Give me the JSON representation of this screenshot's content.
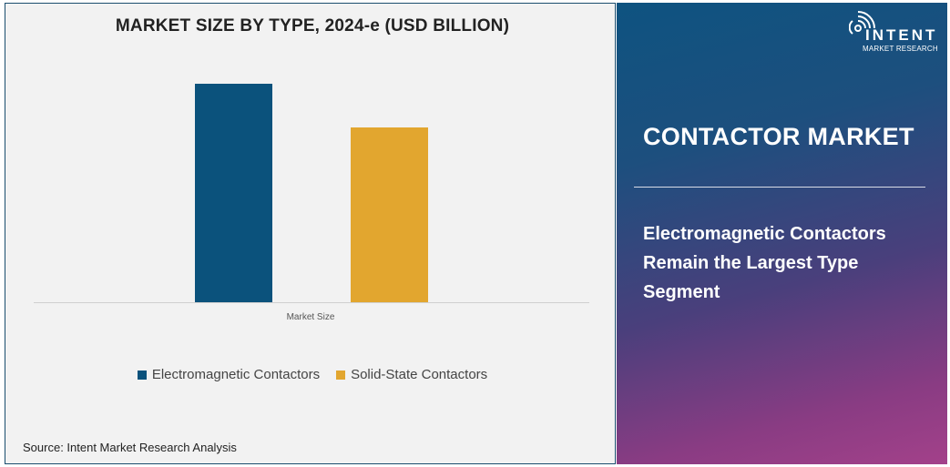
{
  "chart_data": {
    "type": "bar",
    "title": "MARKET SIZE BY TYPE, 2024-e (USD BILLION)",
    "categories": [
      "Market Size"
    ],
    "series": [
      {
        "name": "Electromagnetic Contactors",
        "values": [
          1.0
        ],
        "color": "#0b527c"
      },
      {
        "name": "Solid-State Contactors",
        "values": [
          0.8
        ],
        "color": "#e2a62f"
      }
    ],
    "xlabel": "",
    "ylabel": "",
    "ylim": [
      0,
      1.0
    ],
    "grid": false,
    "legend": "bottom"
  },
  "source": "Source: Intent Market Research Analysis",
  "panel": {
    "title": "CONTACTOR MARKET",
    "subtitle": "Electromagnetic Contactors Remain the Largest Type Segment",
    "logo_text": "INTENT",
    "logo_sub": "MARKET RESEARCH"
  }
}
